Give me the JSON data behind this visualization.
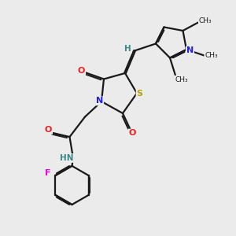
{
  "bg_color": "#ebebeb",
  "bond_color": "#1a1a1a",
  "N_color": "#2020ee",
  "O_color": "#ee2020",
  "S_color": "#b8a000",
  "F_color": "#ee00ee",
  "H_color": "#3a8888",
  "lw": 1.6,
  "dbo": 0.06,
  "xlim": [
    0,
    10
  ],
  "ylim": [
    0,
    10
  ]
}
